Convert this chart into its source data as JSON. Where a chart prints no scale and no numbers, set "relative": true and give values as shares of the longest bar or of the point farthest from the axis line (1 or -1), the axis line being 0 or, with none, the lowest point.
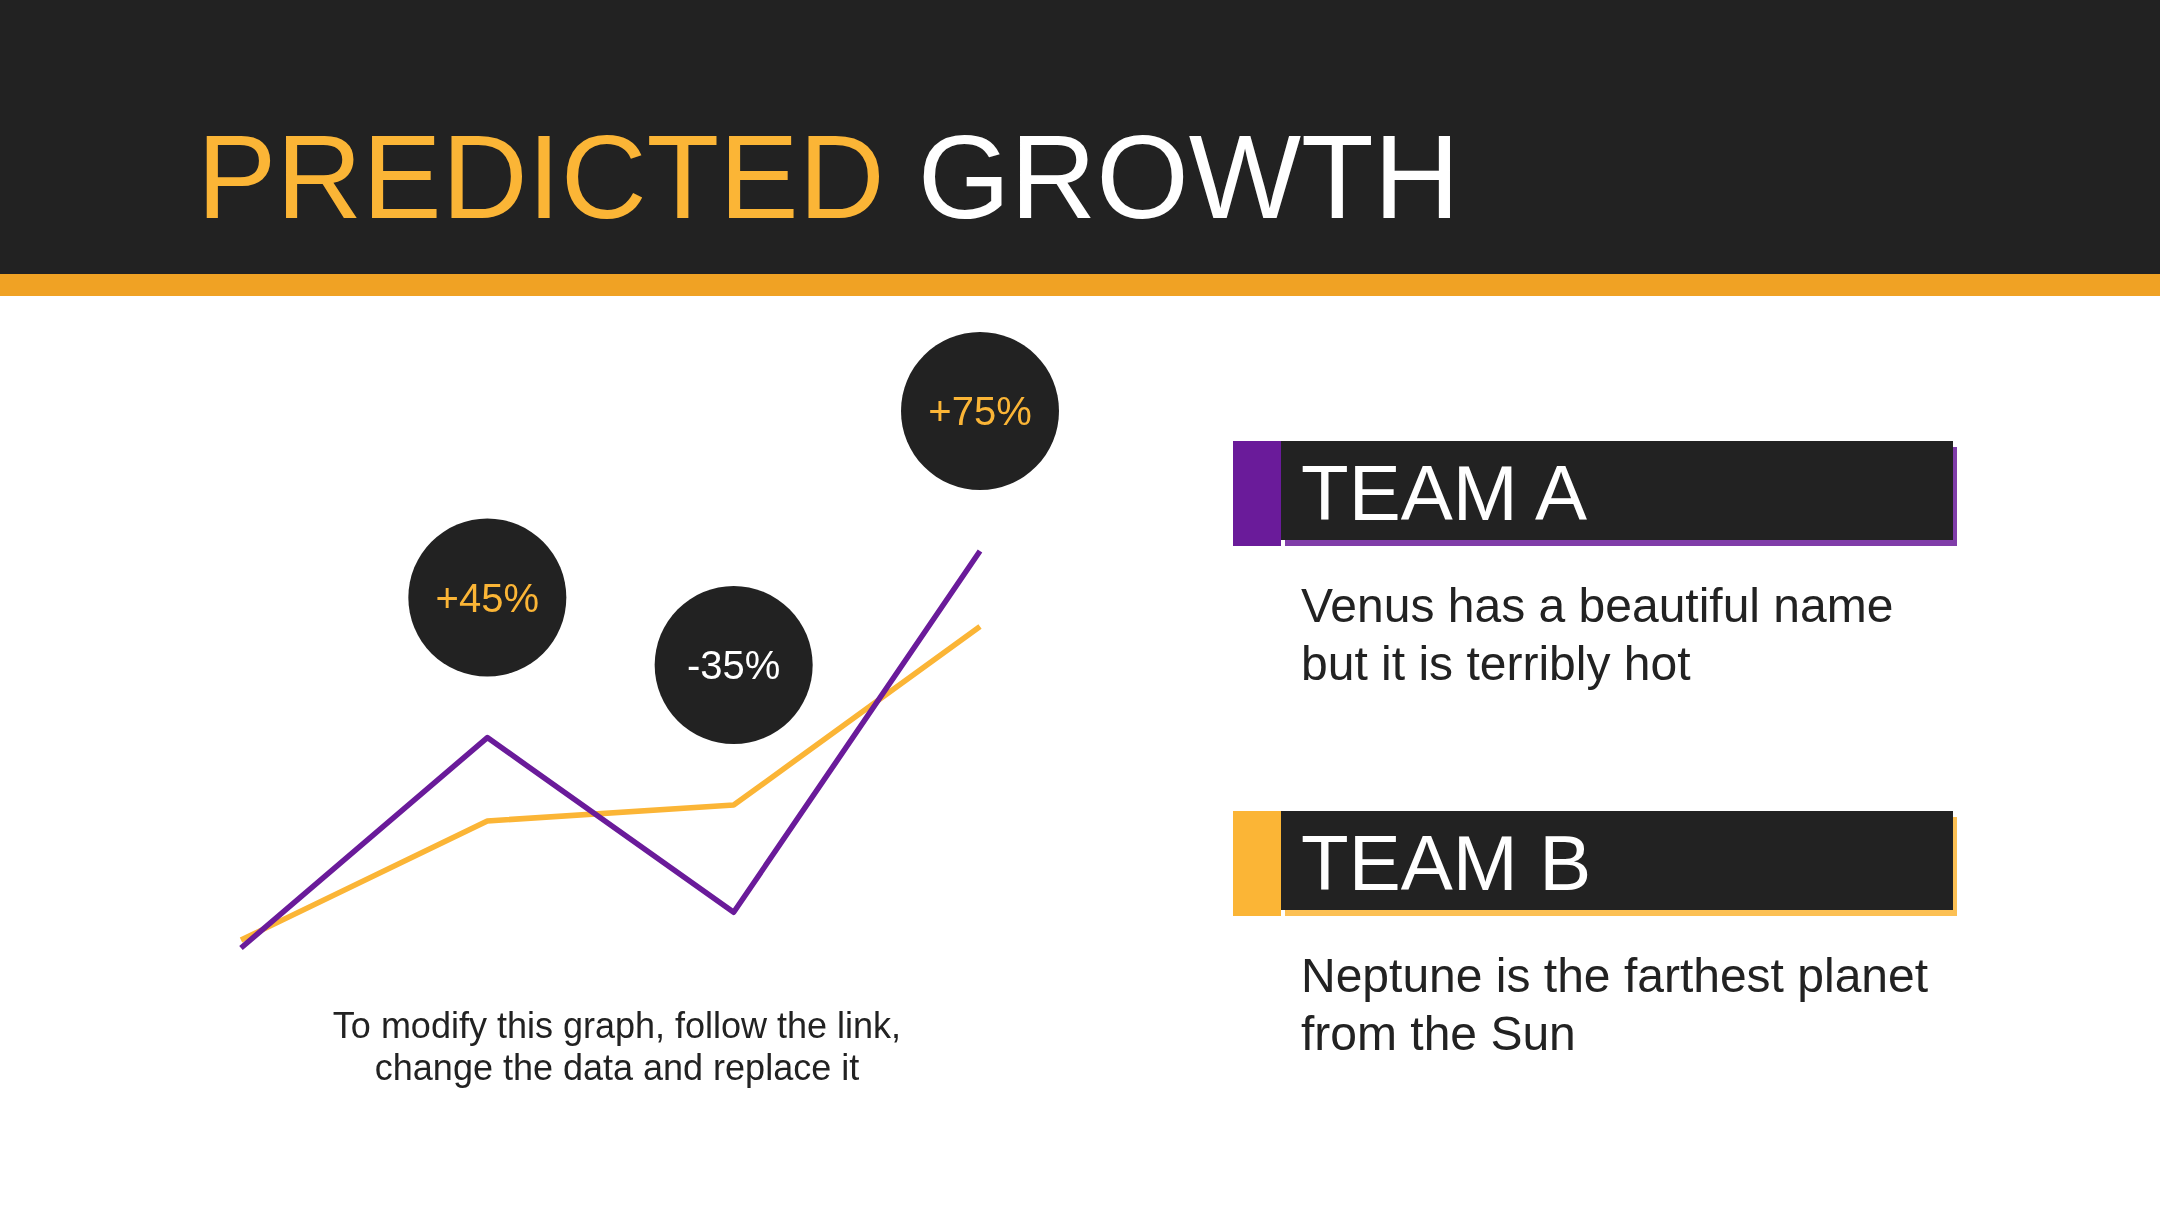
{
  "chart_data": {
    "type": "line",
    "title": "PREDICTED GROWTH",
    "categories": [
      null,
      null,
      null,
      null
    ],
    "relative": true,
    "legend": "right",
    "series": [
      {
        "name": "TEAM A",
        "color": "#6a1b9a",
        "values": [
          0,
          0.53,
          0.09,
          1
        ]
      },
      {
        "name": "TEAM B",
        "color": "#fbb536",
        "values": [
          0.02,
          0.32,
          0.36,
          0.81
        ]
      }
    ],
    "annotations": [
      {
        "text": "+45%",
        "y": 0.53
      },
      {
        "text": "-35%",
        "y": 0.36
      },
      {
        "text": "+75%",
        "y": 1
      },
      "Venus has a beautiful name but it is terribly hot",
      "Neptune is the farthest planet from the Sun",
      "To modify this graph, follow the link, change the data and replace it"
    ]
  }
}
